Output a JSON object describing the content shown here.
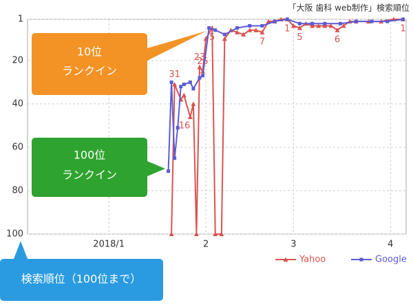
{
  "chart_data": {
    "type": "line",
    "title": "「大阪 歯科 web制作」検索順位",
    "invert_y": true,
    "grid": true,
    "xlim": [
      -25,
      96
    ],
    "ylim": [
      1,
      100
    ],
    "xticks": [
      {
        "value": 1,
        "label": "2018/1"
      },
      {
        "value": 32,
        "label": "2"
      },
      {
        "value": 60,
        "label": "3"
      },
      {
        "value": 91,
        "label": "4"
      }
    ],
    "yticks": [
      1,
      20,
      40,
      60,
      80,
      100
    ],
    "legend": "bottom-right",
    "series": [
      {
        "name": "Yahoo",
        "color": "#d9534f",
        "marker": "triangle",
        "x": [
          21,
          22,
          24,
          25,
          27,
          28,
          29,
          30,
          31,
          32,
          34,
          35,
          37,
          38,
          40,
          42,
          44,
          46,
          48,
          50,
          52,
          54,
          56,
          58,
          60,
          62,
          64,
          66,
          68,
          70,
          72,
          74,
          76,
          78,
          80,
          84,
          88,
          92,
          95
        ],
        "values": [
          100,
          31,
          38,
          36,
          46,
          40,
          100,
          23,
          25,
          10,
          5,
          100,
          100,
          10,
          6,
          7,
          8,
          6,
          6,
          7,
          2,
          2,
          1,
          1,
          4,
          5,
          3,
          4,
          4,
          4,
          4,
          6,
          4,
          2,
          2,
          2,
          2,
          1,
          1
        ],
        "value_labels": [
          null,
          "31",
          null,
          null,
          null,
          null,
          null,
          "23",
          "25",
          null,
          "5",
          null,
          null,
          null,
          null,
          null,
          null,
          null,
          null,
          "7",
          null,
          null,
          null,
          "1",
          null,
          "5",
          null,
          null,
          null,
          null,
          null,
          "6",
          null,
          null,
          null,
          null,
          null,
          null,
          "1"
        ]
      },
      {
        "name": "Google",
        "color": "#5b5bd6",
        "marker": "square",
        "x": [
          20,
          21,
          22,
          23,
          24,
          25,
          27,
          28,
          30,
          31,
          33,
          35,
          38,
          42,
          46,
          50,
          54,
          58,
          62,
          66,
          70,
          75,
          80,
          85,
          90,
          95
        ],
        "values": [
          71,
          30,
          65,
          51,
          32,
          31,
          30,
          33,
          28,
          27,
          5,
          6,
          8,
          5,
          4,
          4,
          2,
          1,
          3,
          3,
          3,
          3,
          2,
          2,
          2,
          1
        ]
      }
    ],
    "annotations": [
      "16"
    ]
  },
  "callouts": {
    "rank10": [
      "10位",
      "ランクイン"
    ],
    "rank100": [
      "100位",
      "ランクイン"
    ],
    "axis_note": "検索順位（100位まで）"
  }
}
